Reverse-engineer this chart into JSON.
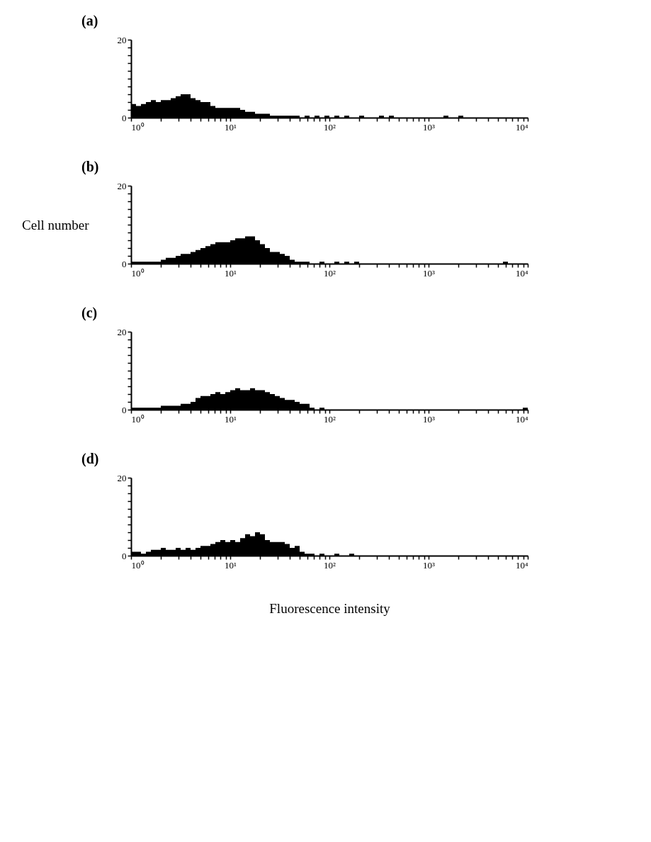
{
  "chart_data": [
    {
      "type": "histogram",
      "title": "(a)",
      "color": "#000000",
      "log": "x",
      "grid": false,
      "xlim": [
        1,
        10000
      ],
      "ylim": [
        0,
        20
      ],
      "xticks": [
        {
          "value": 1,
          "label": "10⁰"
        },
        {
          "value": 2,
          "label": null
        },
        {
          "value": 3,
          "label": null
        },
        {
          "value": 4,
          "label": null
        },
        {
          "value": 5,
          "label": null
        },
        {
          "value": 6,
          "label": null
        },
        {
          "value": 7,
          "label": null
        },
        {
          "value": 8,
          "label": null
        },
        {
          "value": 9,
          "label": null
        },
        {
          "value": 10,
          "label": "10¹"
        },
        {
          "value": 20,
          "label": null
        },
        {
          "value": 30,
          "label": null
        },
        {
          "value": 40,
          "label": null
        },
        {
          "value": 50,
          "label": null
        },
        {
          "value": 60,
          "label": null
        },
        {
          "value": 70,
          "label": null
        },
        {
          "value": 80,
          "label": null
        },
        {
          "value": 90,
          "label": null
        },
        {
          "value": 100,
          "label": "10²"
        },
        {
          "value": 200,
          "label": null
        },
        {
          "value": 300,
          "label": null
        },
        {
          "value": 400,
          "label": null
        },
        {
          "value": 500,
          "label": null
        },
        {
          "value": 600,
          "label": null
        },
        {
          "value": 700,
          "label": null
        },
        {
          "value": 800,
          "label": null
        },
        {
          "value": 900,
          "label": null
        },
        {
          "value": 1000,
          "label": "10³"
        },
        {
          "value": 2000,
          "label": null
        },
        {
          "value": 3000,
          "label": null
        },
        {
          "value": 4000,
          "label": null
        },
        {
          "value": 5000,
          "label": null
        },
        {
          "value": 6000,
          "label": null
        },
        {
          "value": 7000,
          "label": null
        },
        {
          "value": 8000,
          "label": null
        },
        {
          "value": 9000,
          "label": null
        },
        {
          "value": 10000,
          "label": "10⁴"
        }
      ],
      "yticks": [
        0,
        {
          "value": 2,
          "label": null
        },
        {
          "value": 4,
          "label": null
        },
        {
          "value": 6,
          "label": null
        },
        {
          "value": 8,
          "label": null
        },
        {
          "value": 10,
          "label": null
        },
        {
          "value": 12,
          "label": null
        },
        {
          "value": 14,
          "label": null
        },
        {
          "value": 16,
          "label": null
        },
        {
          "value": 18,
          "label": null
        },
        20
      ],
      "bins": [
        1,
        1.122,
        1.259,
        1.413,
        1.585,
        1.778,
        1.995,
        2.239,
        2.512,
        2.818,
        3.162,
        3.548,
        3.981,
        4.467,
        5.012,
        5.623,
        6.31,
        7.079,
        7.943,
        8.913,
        10,
        11.22,
        12.59,
        14.13,
        15.85,
        17.78,
        19.95,
        22.39,
        25.12,
        28.18,
        31.62,
        35.48,
        39.81,
        44.67,
        50.12,
        56.23,
        63.1,
        70.79,
        79.43,
        89.13,
        100,
        112.2,
        125.9,
        141.3,
        158.5,
        177.8,
        199.5,
        223.9,
        251.2,
        281.8,
        316.2,
        354.8,
        398.1,
        446.7,
        501.2,
        562.3,
        631,
        707.9,
        794.3,
        891.3,
        1000,
        1122,
        1259,
        1413,
        1585,
        1778,
        1995,
        2239,
        2512,
        2818,
        3162,
        3548,
        3981,
        4467,
        5012,
        5623,
        6310,
        7079,
        7943,
        8913,
        10000
      ],
      "values": [
        3.5,
        3,
        3.5,
        4,
        4.5,
        4,
        4.5,
        4.5,
        5,
        5.5,
        6,
        6,
        5,
        4.5,
        4,
        4,
        3,
        2.5,
        2.5,
        2.5,
        2.5,
        2.5,
        2,
        1.5,
        1.5,
        1,
        1,
        1,
        0.5,
        0.5,
        0.5,
        0.5,
        0.5,
        0.5,
        0,
        0.5,
        0,
        0.5,
        0,
        0.5,
        0,
        0.5,
        0,
        0.5,
        0,
        0,
        0.5,
        0,
        0,
        0,
        0.5,
        0,
        0.5,
        0,
        0,
        0,
        0,
        0,
        0,
        0,
        0,
        0,
        0,
        0.5,
        0,
        0,
        0.5,
        0,
        0,
        0,
        0,
        0,
        0,
        0,
        0,
        0,
        0,
        0,
        0,
        0
      ]
    },
    {
      "type": "histogram",
      "title": "(b)",
      "ylabel": "Cell number",
      "color": "#000000",
      "log": "x",
      "grid": false,
      "xlim": [
        1,
        10000
      ],
      "ylim": [
        0,
        20
      ],
      "xticks": [
        {
          "value": 1,
          "label": "10⁰"
        },
        {
          "value": 2,
          "label": null
        },
        {
          "value": 3,
          "label": null
        },
        {
          "value": 4,
          "label": null
        },
        {
          "value": 5,
          "label": null
        },
        {
          "value": 6,
          "label": null
        },
        {
          "value": 7,
          "label": null
        },
        {
          "value": 8,
          "label": null
        },
        {
          "value": 9,
          "label": null
        },
        {
          "value": 10,
          "label": "10¹"
        },
        {
          "value": 20,
          "label": null
        },
        {
          "value": 30,
          "label": null
        },
        {
          "value": 40,
          "label": null
        },
        {
          "value": 50,
          "label": null
        },
        {
          "value": 60,
          "label": null
        },
        {
          "value": 70,
          "label": null
        },
        {
          "value": 80,
          "label": null
        },
        {
          "value": 90,
          "label": null
        },
        {
          "value": 100,
          "label": "10²"
        },
        {
          "value": 200,
          "label": null
        },
        {
          "value": 300,
          "label": null
        },
        {
          "value": 400,
          "label": null
        },
        {
          "value": 500,
          "label": null
        },
        {
          "value": 600,
          "label": null
        },
        {
          "value": 700,
          "label": null
        },
        {
          "value": 800,
          "label": null
        },
        {
          "value": 900,
          "label": null
        },
        {
          "value": 1000,
          "label": "10³"
        },
        {
          "value": 2000,
          "label": null
        },
        {
          "value": 3000,
          "label": null
        },
        {
          "value": 4000,
          "label": null
        },
        {
          "value": 5000,
          "label": null
        },
        {
          "value": 6000,
          "label": null
        },
        {
          "value": 7000,
          "label": null
        },
        {
          "value": 8000,
          "label": null
        },
        {
          "value": 9000,
          "label": null
        },
        {
          "value": 10000,
          "label": "10⁴"
        }
      ],
      "yticks": [
        0,
        {
          "value": 2,
          "label": null
        },
        {
          "value": 4,
          "label": null
        },
        {
          "value": 6,
          "label": null
        },
        {
          "value": 8,
          "label": null
        },
        {
          "value": 10,
          "label": null
        },
        {
          "value": 12,
          "label": null
        },
        {
          "value": 14,
          "label": null
        },
        {
          "value": 16,
          "label": null
        },
        {
          "value": 18,
          "label": null
        },
        20
      ],
      "bins": [
        1,
        1.122,
        1.259,
        1.413,
        1.585,
        1.778,
        1.995,
        2.239,
        2.512,
        2.818,
        3.162,
        3.548,
        3.981,
        4.467,
        5.012,
        5.623,
        6.31,
        7.079,
        7.943,
        8.913,
        10,
        11.22,
        12.59,
        14.13,
        15.85,
        17.78,
        19.95,
        22.39,
        25.12,
        28.18,
        31.62,
        35.48,
        39.81,
        44.67,
        50.12,
        56.23,
        63.1,
        70.79,
        79.43,
        89.13,
        100,
        112.2,
        125.9,
        141.3,
        158.5,
        177.8,
        199.5,
        223.9,
        251.2,
        281.8,
        316.2,
        354.8,
        398.1,
        446.7,
        501.2,
        562.3,
        631,
        707.9,
        794.3,
        891.3,
        1000,
        1122,
        1259,
        1413,
        1585,
        1778,
        1995,
        2239,
        2512,
        2818,
        3162,
        3548,
        3981,
        4467,
        5012,
        5623,
        6310,
        7079,
        7943,
        8913,
        10000
      ],
      "values": [
        0.5,
        0.5,
        0.5,
        0.5,
        0.5,
        0.5,
        1,
        1.5,
        1.5,
        2,
        2.5,
        2.5,
        3,
        3.5,
        4,
        4.5,
        5,
        5.5,
        5.5,
        5.5,
        6,
        6.5,
        6.5,
        7,
        7,
        6,
        5,
        4,
        3,
        3,
        2.5,
        2,
        1,
        0.5,
        0.5,
        0.5,
        0,
        0,
        0.5,
        0,
        0,
        0.5,
        0,
        0.5,
        0,
        0.5,
        0,
        0,
        0,
        0,
        0,
        0,
        0,
        0,
        0,
        0,
        0,
        0,
        0,
        0,
        0,
        0,
        0,
        0,
        0,
        0,
        0,
        0,
        0,
        0,
        0,
        0,
        0,
        0,
        0,
        0.5,
        0,
        0,
        0,
        0
      ]
    },
    {
      "type": "histogram",
      "title": "(c)",
      "color": "#000000",
      "log": "x",
      "grid": false,
      "xlim": [
        1,
        10000
      ],
      "ylim": [
        0,
        20
      ],
      "xticks": [
        {
          "value": 1,
          "label": "10⁰"
        },
        {
          "value": 2,
          "label": null
        },
        {
          "value": 3,
          "label": null
        },
        {
          "value": 4,
          "label": null
        },
        {
          "value": 5,
          "label": null
        },
        {
          "value": 6,
          "label": null
        },
        {
          "value": 7,
          "label": null
        },
        {
          "value": 8,
          "label": null
        },
        {
          "value": 9,
          "label": null
        },
        {
          "value": 10,
          "label": "10¹"
        },
        {
          "value": 20,
          "label": null
        },
        {
          "value": 30,
          "label": null
        },
        {
          "value": 40,
          "label": null
        },
        {
          "value": 50,
          "label": null
        },
        {
          "value": 60,
          "label": null
        },
        {
          "value": 70,
          "label": null
        },
        {
          "value": 80,
          "label": null
        },
        {
          "value": 90,
          "label": null
        },
        {
          "value": 100,
          "label": "10²"
        },
        {
          "value": 200,
          "label": null
        },
        {
          "value": 300,
          "label": null
        },
        {
          "value": 400,
          "label": null
        },
        {
          "value": 500,
          "label": null
        },
        {
          "value": 600,
          "label": null
        },
        {
          "value": 700,
          "label": null
        },
        {
          "value": 800,
          "label": null
        },
        {
          "value": 900,
          "label": null
        },
        {
          "value": 1000,
          "label": "10³"
        },
        {
          "value": 2000,
          "label": null
        },
        {
          "value": 3000,
          "label": null
        },
        {
          "value": 4000,
          "label": null
        },
        {
          "value": 5000,
          "label": null
        },
        {
          "value": 6000,
          "label": null
        },
        {
          "value": 7000,
          "label": null
        },
        {
          "value": 8000,
          "label": null
        },
        {
          "value": 9000,
          "label": null
        },
        {
          "value": 10000,
          "label": "10⁴"
        }
      ],
      "yticks": [
        0,
        {
          "value": 2,
          "label": null
        },
        {
          "value": 4,
          "label": null
        },
        {
          "value": 6,
          "label": null
        },
        {
          "value": 8,
          "label": null
        },
        {
          "value": 10,
          "label": null
        },
        {
          "value": 12,
          "label": null
        },
        {
          "value": 14,
          "label": null
        },
        {
          "value": 16,
          "label": null
        },
        {
          "value": 18,
          "label": null
        },
        20
      ],
      "bins": [
        1,
        1.122,
        1.259,
        1.413,
        1.585,
        1.778,
        1.995,
        2.239,
        2.512,
        2.818,
        3.162,
        3.548,
        3.981,
        4.467,
        5.012,
        5.623,
        6.31,
        7.079,
        7.943,
        8.913,
        10,
        11.22,
        12.59,
        14.13,
        15.85,
        17.78,
        19.95,
        22.39,
        25.12,
        28.18,
        31.62,
        35.48,
        39.81,
        44.67,
        50.12,
        56.23,
        63.1,
        70.79,
        79.43,
        89.13,
        100,
        112.2,
        125.9,
        141.3,
        158.5,
        177.8,
        199.5,
        223.9,
        251.2,
        281.8,
        316.2,
        354.8,
        398.1,
        446.7,
        501.2,
        562.3,
        631,
        707.9,
        794.3,
        891.3,
        1000,
        1122,
        1259,
        1413,
        1585,
        1778,
        1995,
        2239,
        2512,
        2818,
        3162,
        3548,
        3981,
        4467,
        5012,
        5623,
        6310,
        7079,
        7943,
        8913,
        10000
      ],
      "values": [
        0.5,
        0.5,
        0.5,
        0.5,
        0.5,
        0.5,
        1,
        1,
        1,
        1,
        1.5,
        1.5,
        2,
        3,
        3.5,
        3.5,
        4,
        4.5,
        4,
        4.5,
        5,
        5.5,
        5,
        5,
        5.5,
        5,
        5,
        4.5,
        4,
        3.5,
        3,
        2.5,
        2.5,
        2,
        1.5,
        1.5,
        0.5,
        0,
        0.5,
        0,
        0,
        0,
        0,
        0,
        0,
        0,
        0,
        0,
        0,
        0,
        0,
        0,
        0,
        0,
        0,
        0,
        0,
        0,
        0,
        0,
        0,
        0,
        0,
        0,
        0,
        0,
        0,
        0,
        0,
        0,
        0,
        0,
        0,
        0,
        0,
        0,
        0,
        0,
        0,
        0.5
      ]
    },
    {
      "type": "histogram",
      "title": "(d)",
      "xlabel": "Fluorescence intensity",
      "color": "#000000",
      "log": "x",
      "grid": false,
      "xlim": [
        1,
        10000
      ],
      "ylim": [
        0,
        20
      ],
      "xticks": [
        {
          "value": 1,
          "label": "10⁰"
        },
        {
          "value": 2,
          "label": null
        },
        {
          "value": 3,
          "label": null
        },
        {
          "value": 4,
          "label": null
        },
        {
          "value": 5,
          "label": null
        },
        {
          "value": 6,
          "label": null
        },
        {
          "value": 7,
          "label": null
        },
        {
          "value": 8,
          "label": null
        },
        {
          "value": 9,
          "label": null
        },
        {
          "value": 10,
          "label": "10¹"
        },
        {
          "value": 20,
          "label": null
        },
        {
          "value": 30,
          "label": null
        },
        {
          "value": 40,
          "label": null
        },
        {
          "value": 50,
          "label": null
        },
        {
          "value": 60,
          "label": null
        },
        {
          "value": 70,
          "label": null
        },
        {
          "value": 80,
          "label": null
        },
        {
          "value": 90,
          "label": null
        },
        {
          "value": 100,
          "label": "10²"
        },
        {
          "value": 200,
          "label": null
        },
        {
          "value": 300,
          "label": null
        },
        {
          "value": 400,
          "label": null
        },
        {
          "value": 500,
          "label": null
        },
        {
          "value": 600,
          "label": null
        },
        {
          "value": 700,
          "label": null
        },
        {
          "value": 800,
          "label": null
        },
        {
          "value": 900,
          "label": null
        },
        {
          "value": 1000,
          "label": "10³"
        },
        {
          "value": 2000,
          "label": null
        },
        {
          "value": 3000,
          "label": null
        },
        {
          "value": 4000,
          "label": null
        },
        {
          "value": 5000,
          "label": null
        },
        {
          "value": 6000,
          "label": null
        },
        {
          "value": 7000,
          "label": null
        },
        {
          "value": 8000,
          "label": null
        },
        {
          "value": 9000,
          "label": null
        },
        {
          "value": 10000,
          "label": "10⁴"
        }
      ],
      "yticks": [
        0,
        {
          "value": 2,
          "label": null
        },
        {
          "value": 4,
          "label": null
        },
        {
          "value": 6,
          "label": null
        },
        {
          "value": 8,
          "label": null
        },
        {
          "value": 10,
          "label": null
        },
        {
          "value": 12,
          "label": null
        },
        {
          "value": 14,
          "label": null
        },
        {
          "value": 16,
          "label": null
        },
        {
          "value": 18,
          "label": null
        },
        20
      ],
      "bins": [
        1,
        1.122,
        1.259,
        1.413,
        1.585,
        1.778,
        1.995,
        2.239,
        2.512,
        2.818,
        3.162,
        3.548,
        3.981,
        4.467,
        5.012,
        5.623,
        6.31,
        7.079,
        7.943,
        8.913,
        10,
        11.22,
        12.59,
        14.13,
        15.85,
        17.78,
        19.95,
        22.39,
        25.12,
        28.18,
        31.62,
        35.48,
        39.81,
        44.67,
        50.12,
        56.23,
        63.1,
        70.79,
        79.43,
        89.13,
        100,
        112.2,
        125.9,
        141.3,
        158.5,
        177.8,
        199.5,
        223.9,
        251.2,
        281.8,
        316.2,
        354.8,
        398.1,
        446.7,
        501.2,
        562.3,
        631,
        707.9,
        794.3,
        891.3,
        1000,
        1122,
        1259,
        1413,
        1585,
        1778,
        1995,
        2239,
        2512,
        2818,
        3162,
        3548,
        3981,
        4467,
        5012,
        5623,
        6310,
        7079,
        7943,
        8913,
        10000
      ],
      "values": [
        1,
        1,
        0.5,
        1,
        1.5,
        1.5,
        2,
        1.5,
        1.5,
        2,
        1.5,
        2,
        1.5,
        2,
        2.5,
        2.5,
        3,
        3.5,
        4,
        3.5,
        4,
        3.5,
        4.5,
        5.5,
        5,
        6,
        5.5,
        4,
        3.5,
        3.5,
        3.5,
        3,
        2,
        2.5,
        1,
        0.5,
        0.5,
        0,
        0.5,
        0,
        0,
        0.5,
        0,
        0,
        0.5,
        0,
        0,
        0,
        0,
        0,
        0,
        0,
        0,
        0,
        0,
        0,
        0,
        0,
        0,
        0,
        0,
        0,
        0,
        0,
        0,
        0,
        0,
        0,
        0,
        0,
        0,
        0,
        0,
        0,
        0,
        0,
        0,
        0,
        0,
        0
      ]
    }
  ]
}
